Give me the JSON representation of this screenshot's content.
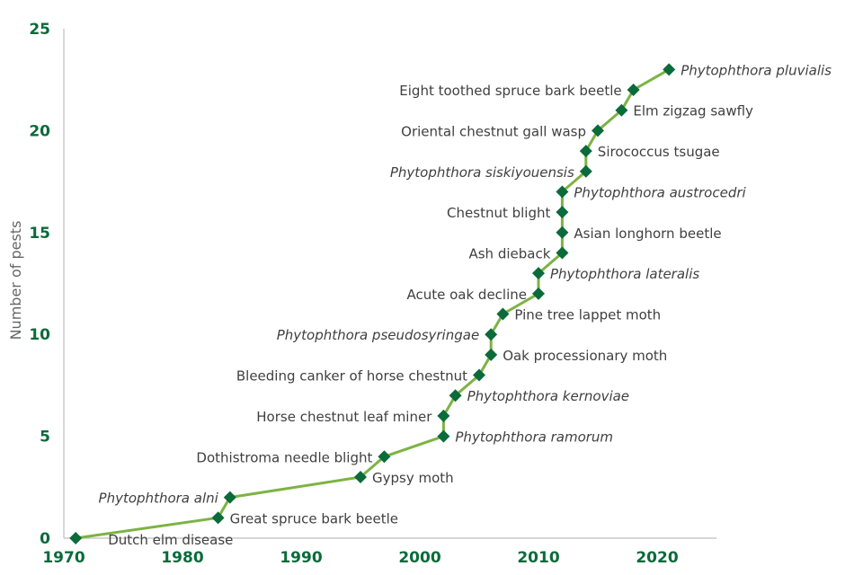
{
  "chart_data": {
    "type": "line",
    "title": "",
    "xlabel": "",
    "ylabel": "Number of pests",
    "xlim": [
      1970,
      2025
    ],
    "ylim": [
      0,
      25
    ],
    "x_ticks": [
      "1970",
      "1980",
      "1990",
      "2000",
      "2010",
      "2020"
    ],
    "y_ticks": [
      "0",
      "5",
      "10",
      "15",
      "20",
      "25"
    ],
    "grid": false,
    "colors": {
      "line": "#7cb342",
      "marker": "#0b6b3a",
      "tick": "#0b6b3a",
      "label": "#404040"
    },
    "points": [
      {
        "x": 1971,
        "y": 0,
        "label": "Dutch elm disease",
        "italic": false
      },
      {
        "x": 1983,
        "y": 1,
        "label": "Great spruce bark beetle",
        "italic": false
      },
      {
        "x": 1984,
        "y": 2,
        "label": "Phytophthora alni",
        "italic": true
      },
      {
        "x": 1995,
        "y": 3,
        "label": "Gypsy moth",
        "italic": false
      },
      {
        "x": 1997,
        "y": 4,
        "label": "Dothistroma needle blight",
        "italic": false
      },
      {
        "x": 2002,
        "y": 5,
        "label": "Phytophthora ramorum",
        "italic": true
      },
      {
        "x": 2002,
        "y": 6,
        "label": "Horse chestnut leaf miner",
        "italic": false
      },
      {
        "x": 2003,
        "y": 7,
        "label": "Phytophthora kernoviae",
        "italic": true
      },
      {
        "x": 2005,
        "y": 8,
        "label": "Bleeding canker of horse chestnut",
        "italic": false
      },
      {
        "x": 2006,
        "y": 9,
        "label": "Oak processionary moth",
        "italic": false
      },
      {
        "x": 2006,
        "y": 10,
        "label": "Phytophthora pseudosyringae",
        "italic": true
      },
      {
        "x": 2007,
        "y": 11,
        "label": "Pine tree lappet moth",
        "italic": false
      },
      {
        "x": 2010,
        "y": 12,
        "label": "Acute oak decline",
        "italic": false
      },
      {
        "x": 2010,
        "y": 13,
        "label": "Phytophthora lateralis",
        "italic": true
      },
      {
        "x": 2012,
        "y": 14,
        "label": "Ash dieback",
        "italic": false
      },
      {
        "x": 2012,
        "y": 15,
        "label": "Asian longhorn beetle",
        "italic": false
      },
      {
        "x": 2012,
        "y": 16,
        "label": "Chestnut blight",
        "italic": false
      },
      {
        "x": 2012,
        "y": 17,
        "label": "Phytophthora austrocedri",
        "italic": true
      },
      {
        "x": 2014,
        "y": 18,
        "label": "Phytophthora siskiyouensis",
        "italic": true
      },
      {
        "x": 2014,
        "y": 19,
        "label": "Sirococcus tsugae",
        "italic": false
      },
      {
        "x": 2015,
        "y": 20,
        "label": "Oriental chestnut gall wasp",
        "italic": false
      },
      {
        "x": 2017,
        "y": 21,
        "label": "Elm zigzag sawfly",
        "italic": false
      },
      {
        "x": 2018,
        "y": 22,
        "label": "Eight toothed spruce bark beetle",
        "italic": false
      },
      {
        "x": 2021,
        "y": 23,
        "label": "Phytophthora pluvialis",
        "italic": true
      }
    ]
  }
}
